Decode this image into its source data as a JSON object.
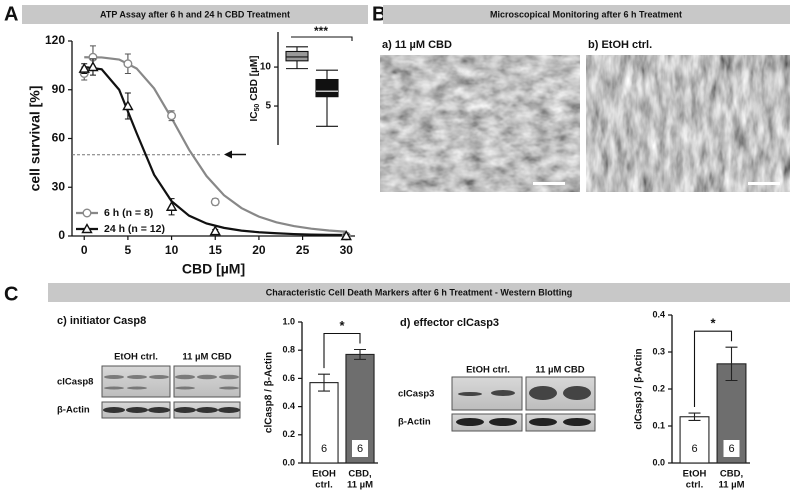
{
  "panels": [
    {
      "label": "A",
      "title": "ATP Assay after 6 h and 24 h CBD Treatment"
    },
    {
      "label": "B",
      "title": "Microscopical Monitoring after 6 h Treatment",
      "images": [
        "a) 11 µM CBD",
        "b) EtOH ctrl."
      ]
    },
    {
      "label": "C",
      "title": "Characteristic Cell Death Markers after 6 h Treatment - Western Blotting"
    }
  ],
  "blots": [
    {
      "title": "c) initiator Casp8",
      "lanes": [
        "EtOH ctrl.",
        "11 µM CBD"
      ],
      "rows": [
        "clCasp8",
        "β-Actin"
      ]
    },
    {
      "title": "d) effector clCasp3",
      "lanes": [
        "EtOH ctrl.",
        "11 µM CBD"
      ],
      "rows": [
        "clCasp3",
        "β-Actin"
      ]
    }
  ],
  "chart_data": [
    {
      "type": "line",
      "xlabel": "CBD [µM]",
      "ylabel": "cell survival [%]",
      "xlim": [
        -1.4,
        31
      ],
      "ylim": [
        0,
        120
      ],
      "xticks": [
        0,
        5,
        10,
        15,
        20,
        25,
        30
      ],
      "yticks": [
        0,
        30,
        60,
        90,
        120
      ],
      "reference_line": 50,
      "series": [
        {
          "name": "6 h (n = 8)",
          "color": "#888888",
          "marker": "circle",
          "x": [
            0,
            1,
            5,
            10,
            15,
            30
          ],
          "values": [
            100,
            110,
            106,
            74,
            21,
            0
          ],
          "errors": [
            4,
            7,
            6,
            3,
            2,
            1
          ],
          "fit_x": [
            0,
            2,
            4,
            6,
            8,
            10,
            12,
            14,
            16,
            18,
            20,
            22,
            24,
            26,
            28,
            30
          ],
          "fit_values": [
            110,
            109.9,
            108.6,
            103.1,
            90.8,
            72.6,
            53.1,
            36.9,
            25.1,
            17.2,
            11.9,
            8.4,
            6.1,
            4.5,
            3.4,
            2.6
          ]
        },
        {
          "name": "24 h (n = 12)",
          "color": "#111111",
          "marker": "triangle",
          "x": [
            0,
            1,
            5,
            10,
            15,
            30
          ],
          "values": [
            103,
            104,
            80,
            18,
            3,
            0
          ],
          "errors": [
            3,
            5,
            8,
            5,
            1,
            1
          ],
          "fit_x": [
            0,
            2,
            4,
            6,
            8,
            10,
            12,
            14,
            16,
            18,
            20,
            22,
            24,
            26,
            28,
            30
          ],
          "fit_values": [
            104,
            102.6,
            90,
            63.3,
            37.7,
            21.4,
            12.5,
            7.7,
            5,
            3.3,
            2.3,
            1.7,
            1.2,
            0.9,
            0.7,
            0.6
          ]
        }
      ]
    },
    {
      "type": "box",
      "ylabel": "IC",
      "ylabel_sub": "50",
      "ylabel_rest": "CBD [µM]",
      "ylim": [
        0,
        14.5
      ],
      "yticks": [
        5,
        10
      ],
      "boxes": [
        {
          "color": "#999999",
          "min": 9.8,
          "q1": 10.8,
          "median": 11.3,
          "q3": 12,
          "max": 12.6
        },
        {
          "color": "#111111",
          "min": 2.4,
          "q1": 6.2,
          "median": 6.9,
          "q3": 8.4,
          "max": 9.6
        }
      ],
      "significance": "***"
    },
    {
      "type": "bar",
      "ylabel": "clCasp8 / β-Actin",
      "ylim": [
        0,
        1
      ],
      "yticks": [
        {
          "value": 0,
          "label": "0.0"
        },
        0.2,
        0.4,
        0.6,
        0.8,
        {
          "value": 1,
          "label": "1.0"
        }
      ],
      "categories": [
        [
          "EtOH",
          "ctrl."
        ],
        [
          "CBD,",
          "11 µM"
        ]
      ],
      "values": [
        0.57,
        0.77
      ],
      "errors": [
        0.06,
        0.035
      ],
      "colors": [
        "#ffffff",
        "#6e6e6e"
      ],
      "n": [
        6,
        6
      ],
      "significance": "*"
    },
    {
      "type": "bar",
      "ylabel": "clCasp3 / β-Actin",
      "ylim": [
        0,
        0.4
      ],
      "yticks": [
        {
          "value": 0,
          "label": "0.0"
        },
        0.1,
        0.2,
        0.3,
        0.4
      ],
      "categories": [
        [
          "EtOH",
          "ctrl."
        ],
        [
          "CBD,",
          "11 µM"
        ]
      ],
      "values": [
        0.125,
        0.268
      ],
      "errors": [
        0.01,
        0.045
      ],
      "colors": [
        "#ffffff",
        "#6e6e6e"
      ],
      "n": [
        6,
        6
      ],
      "significance": "*"
    }
  ]
}
